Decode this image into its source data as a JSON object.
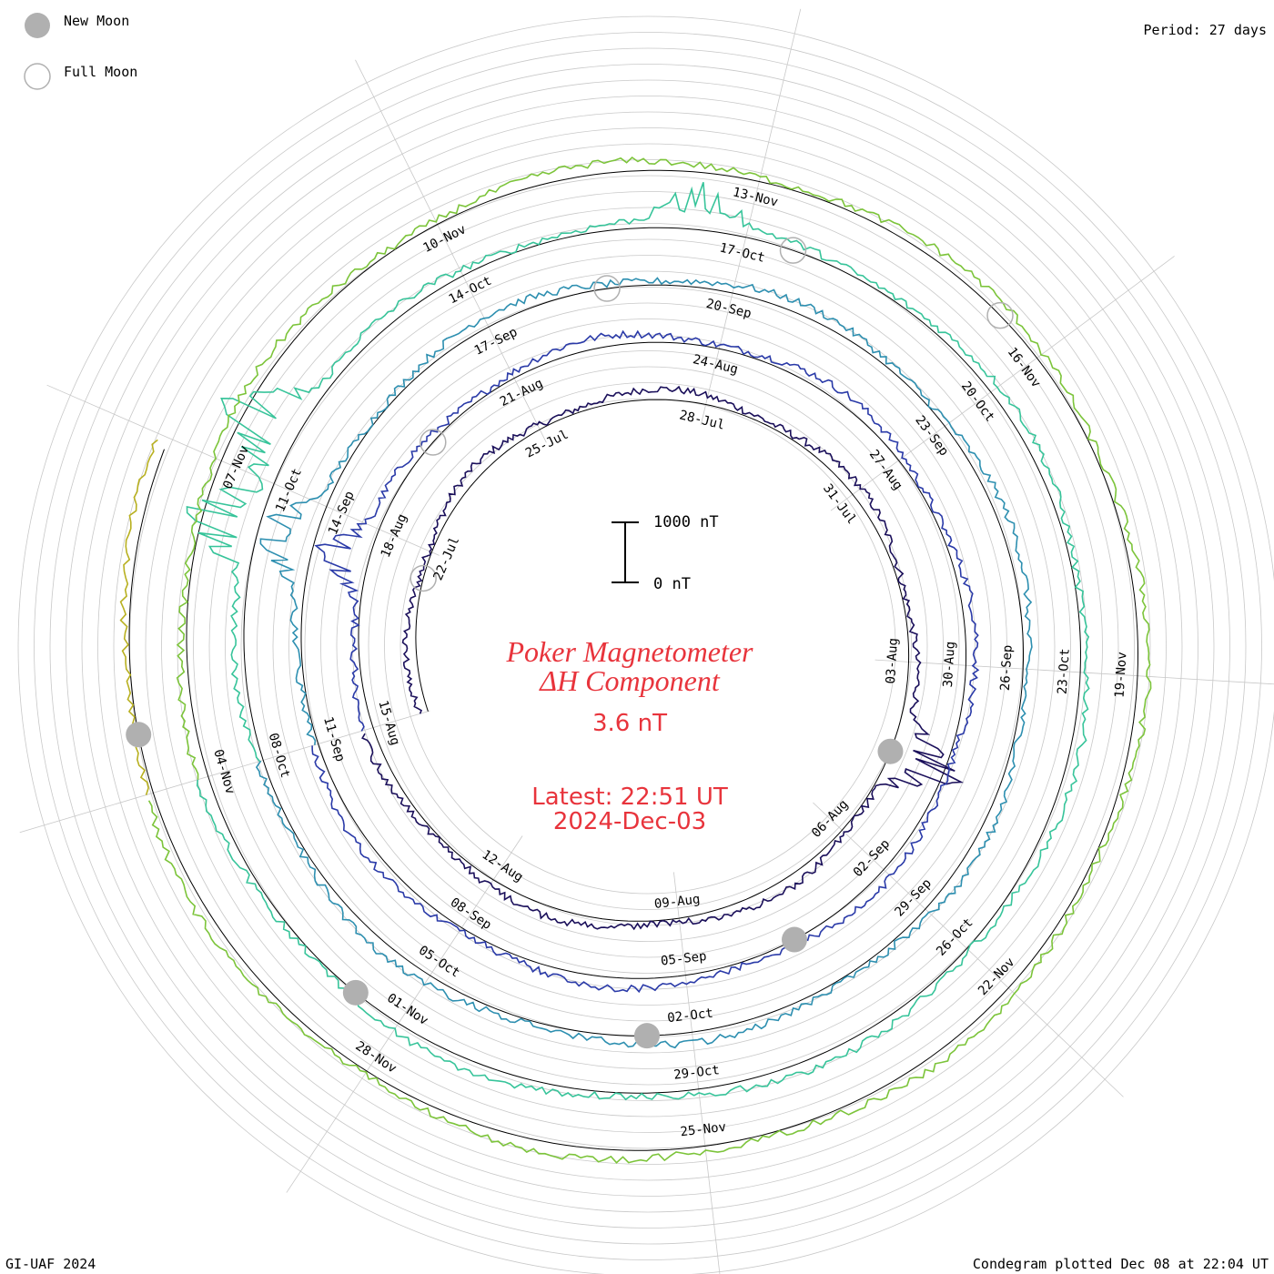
{
  "legend": {
    "new_moon_label": "New Moon",
    "full_moon_label": "Full Moon",
    "new_moon_color": "#b0b0b0",
    "full_moon_color": "#b0b0b0"
  },
  "period_text": "Period: 27 days",
  "footer": {
    "left": "GI-UAF 2024",
    "right": "Condegram plotted Dec 08 at 22:04 UT"
  },
  "title": {
    "line1": "Poker Magnetometer",
    "line2": "ΔH Component",
    "value": "3.6 nT",
    "latest": "Latest: 22:51 UT",
    "date": "2024-Dec-03",
    "color": "#e8343c"
  },
  "scale_bar": {
    "top_label": "1000 nT",
    "bottom_label": "0 nT"
  },
  "chart_data": {
    "type": "line",
    "period_days": 27,
    "start_date": "2024-07-19",
    "end_date": "2024-12-03",
    "scale_nT": [
      0,
      1000
    ],
    "date_labels": [
      "22-Jul",
      "25-Jul",
      "28-Jul",
      "31-Jul",
      "03-Aug",
      "06-Aug",
      "09-Aug",
      "12-Aug",
      "15-Aug",
      "18-Aug",
      "21-Aug",
      "24-Aug",
      "27-Aug",
      "30-Aug",
      "02-Sep",
      "05-Sep",
      "08-Sep",
      "11-Sep",
      "14-Sep",
      "17-Sep",
      "20-Sep",
      "23-Sep",
      "26-Sep",
      "29-Sep",
      "02-Oct",
      "05-Oct",
      "08-Oct",
      "11-Oct",
      "14-Oct",
      "17-Oct",
      "20-Oct",
      "23-Oct",
      "26-Oct",
      "29-Oct",
      "01-Nov",
      "04-Nov",
      "07-Nov",
      "10-Nov",
      "13-Nov",
      "16-Nov",
      "19-Nov",
      "22-Nov",
      "25-Nov",
      "28-Nov"
    ],
    "new_moons": [
      "2024-08-04",
      "2024-09-03",
      "2024-10-02",
      "2024-11-01",
      "2024-12-01"
    ],
    "full_moons": [
      "2024-07-21",
      "2024-08-19",
      "2024-09-18",
      "2024-10-17",
      "2024-11-15"
    ],
    "spikes_nT": [
      {
        "date": "2024-08-04",
        "value": 1100
      },
      {
        "date": "2024-08-17",
        "value": 750
      },
      {
        "date": "2024-09-13",
        "value": 900
      },
      {
        "date": "2024-10-10",
        "value": 1200
      },
      {
        "date": "2024-10-11",
        "value": 1300
      },
      {
        "date": "2024-10-16",
        "value": 600
      }
    ],
    "series_colors": [
      "#1a0f5a",
      "#2a3aa8",
      "#2d8fb0",
      "#37c49a",
      "#7cc43a",
      "#b8b020",
      "#c87818",
      "#c03010"
    ]
  }
}
